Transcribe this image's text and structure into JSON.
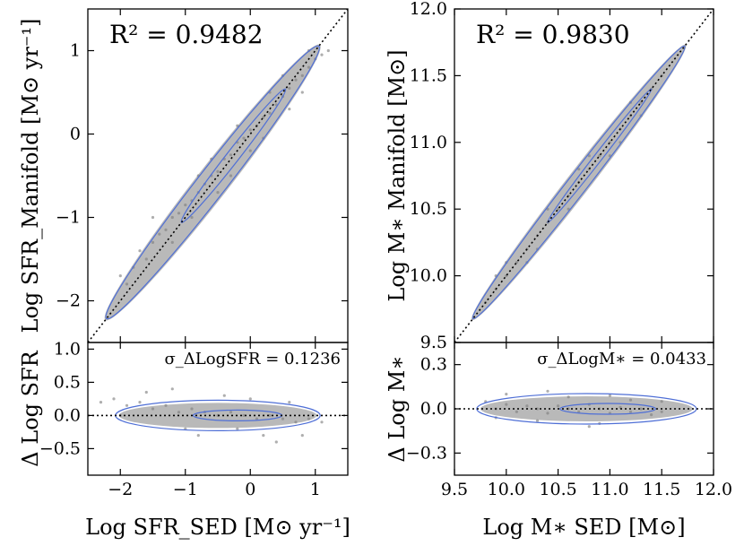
{
  "chart_data": [
    {
      "type": "scatter",
      "panel": "main",
      "annotation": "R² = 0.9482",
      "ylabel": "Log SFR_Manifold [M⊙ yr⁻¹]",
      "xlim": [
        -2.5,
        1.5
      ],
      "ylim": [
        -2.5,
        1.5
      ],
      "yticks": [
        -2,
        -1,
        0,
        1
      ],
      "ytick_labels": [
        "−2",
        "−1",
        "0",
        "1"
      ],
      "points": [
        [
          -1.8,
          -1.6
        ],
        [
          -1.7,
          -1.4
        ],
        [
          -1.6,
          -1.5
        ],
        [
          -1.5,
          -1.3
        ],
        [
          -1.4,
          -1.2
        ],
        [
          -1.3,
          -1.15
        ],
        [
          -1.2,
          -1.0
        ],
        [
          -1.1,
          -0.95
        ],
        [
          -1.0,
          -0.85
        ],
        [
          -0.9,
          -0.8
        ],
        [
          -0.8,
          -0.7
        ],
        [
          -0.7,
          -0.6
        ],
        [
          -0.6,
          -0.5
        ],
        [
          -0.5,
          -0.45
        ],
        [
          -0.4,
          -0.3
        ],
        [
          -0.3,
          -0.25
        ],
        [
          -0.2,
          -0.1
        ],
        [
          -0.1,
          -0.05
        ],
        [
          0.0,
          0.05
        ],
        [
          0.1,
          0.1
        ],
        [
          0.2,
          0.2
        ],
        [
          0.3,
          0.25
        ],
        [
          0.4,
          0.35
        ],
        [
          0.5,
          0.45
        ],
        [
          0.6,
          0.55
        ],
        [
          0.7,
          0.65
        ],
        [
          0.8,
          0.7
        ],
        [
          0.9,
          0.8
        ],
        [
          1.0,
          0.9
        ],
        [
          1.1,
          0.95
        ],
        [
          -1.9,
          -1.8
        ],
        [
          -2.0,
          -1.7
        ],
        [
          -1.5,
          -1.0
        ],
        [
          -1.2,
          -1.3
        ],
        [
          -0.9,
          -1.0
        ],
        [
          -0.6,
          -0.3
        ],
        [
          -0.3,
          -0.5
        ],
        [
          0.0,
          -0.2
        ],
        [
          0.3,
          0.5
        ],
        [
          0.6,
          0.3
        ],
        [
          0.9,
          1.0
        ],
        [
          1.2,
          1.0
        ],
        [
          -0.8,
          -0.5
        ],
        [
          -0.5,
          -0.7
        ],
        [
          -0.2,
          0.1
        ],
        [
          0.2,
          -0.05
        ],
        [
          0.5,
          0.7
        ],
        [
          0.8,
          0.5
        ]
      ],
      "contour_levels": 2
    },
    {
      "type": "scatter",
      "panel": "residual",
      "annotation": "σ_ΔLogSFR = 0.1236",
      "xlabel": "Log SFR_SED [M⊙ yr⁻¹]",
      "ylabel": "Δ Log SFR",
      "xlim": [
        -2.5,
        1.5
      ],
      "ylim": [
        -0.9,
        1.1
      ],
      "xticks": [
        -2,
        -1,
        0,
        1
      ],
      "xtick_labels": [
        "−2",
        "−1",
        "0",
        "1"
      ],
      "yticks": [
        -0.5,
        0.0,
        0.5,
        1.0
      ],
      "ytick_labels": [
        "−0.5",
        "0.0",
        "0.5",
        "1.0"
      ],
      "points": [
        [
          -2.3,
          0.2
        ],
        [
          -2.1,
          0.25
        ],
        [
          -1.9,
          0.15
        ],
        [
          -1.7,
          0.2
        ],
        [
          -1.5,
          0.1
        ],
        [
          -1.3,
          0.15
        ],
        [
          -1.1,
          0.05
        ],
        [
          -0.9,
          0.1
        ],
        [
          -0.7,
          0.05
        ],
        [
          -0.5,
          0.0
        ],
        [
          -0.3,
          0.05
        ],
        [
          -0.1,
          0.0
        ],
        [
          0.1,
          -0.05
        ],
        [
          0.3,
          0.0
        ],
        [
          0.5,
          -0.05
        ],
        [
          0.7,
          -0.1
        ],
        [
          0.9,
          -0.05
        ],
        [
          1.1,
          -0.1
        ],
        [
          -1.6,
          0.35
        ],
        [
          -1.0,
          -0.2
        ],
        [
          -0.4,
          0.3
        ],
        [
          0.2,
          -0.3
        ],
        [
          0.6,
          0.2
        ],
        [
          -2.0,
          0.0
        ],
        [
          -0.8,
          -0.3
        ],
        [
          0.0,
          0.25
        ],
        [
          0.8,
          -0.3
        ],
        [
          -1.2,
          0.4
        ],
        [
          0.4,
          -0.4
        ],
        [
          -0.2,
          -0.2
        ]
      ],
      "reference_line": 0
    },
    {
      "type": "scatter",
      "panel": "main",
      "annotation": "R² = 0.9830",
      "ylabel": "Log M∗ Manifold [M⊙]",
      "xlim": [
        9.5,
        12.0
      ],
      "ylim": [
        9.5,
        12.0
      ],
      "yticks": [
        9.5,
        10.0,
        10.5,
        11.0,
        11.5,
        12.0
      ],
      "ytick_labels": [
        "9.5",
        "10.0",
        "10.5",
        "11.0",
        "11.5",
        "12.0"
      ],
      "points": [
        [
          9.8,
          9.8
        ],
        [
          9.9,
          9.9
        ],
        [
          10.0,
          10.0
        ],
        [
          10.1,
          10.1
        ],
        [
          10.2,
          10.2
        ],
        [
          10.3,
          10.3
        ],
        [
          10.4,
          10.4
        ],
        [
          10.5,
          10.5
        ],
        [
          10.6,
          10.6
        ],
        [
          10.7,
          10.7
        ],
        [
          10.8,
          10.8
        ],
        [
          10.9,
          10.9
        ],
        [
          11.0,
          11.0
        ],
        [
          11.1,
          11.1
        ],
        [
          11.2,
          11.2
        ],
        [
          11.3,
          11.3
        ],
        [
          11.4,
          11.4
        ],
        [
          11.5,
          11.5
        ],
        [
          10.0,
          10.1
        ],
        [
          10.2,
          10.1
        ],
        [
          10.4,
          10.5
        ],
        [
          10.6,
          10.5
        ],
        [
          10.8,
          10.9
        ],
        [
          11.0,
          10.9
        ],
        [
          11.2,
          11.3
        ],
        [
          10.3,
          10.2
        ],
        [
          10.7,
          10.8
        ],
        [
          11.1,
          11.0
        ],
        [
          9.9,
          10.0
        ],
        [
          11.3,
          11.2
        ]
      ],
      "contour_levels": 2
    },
    {
      "type": "scatter",
      "panel": "residual",
      "annotation": "σ_ΔLogM∗ = 0.0433",
      "xlabel": "Log M∗ SED [M⊙]",
      "ylabel": "Δ Log M∗",
      "xlim": [
        9.5,
        12.0
      ],
      "ylim": [
        -0.45,
        0.45
      ],
      "xticks": [
        9.5,
        10.0,
        10.5,
        11.0,
        11.5,
        12.0
      ],
      "xtick_labels": [
        "9.5",
        "10.0",
        "10.5",
        "11.0",
        "11.5",
        "12.0"
      ],
      "yticks": [
        -0.3,
        0.0,
        0.3
      ],
      "ytick_labels": [
        "−0.3",
        "0.0",
        "0.3"
      ],
      "points": [
        [
          9.8,
          0.05
        ],
        [
          9.9,
          0.0
        ],
        [
          10.0,
          0.03
        ],
        [
          10.1,
          -0.02
        ],
        [
          10.2,
          0.02
        ],
        [
          10.3,
          0.0
        ],
        [
          10.4,
          -0.03
        ],
        [
          10.5,
          0.02
        ],
        [
          10.6,
          0.0
        ],
        [
          10.7,
          -0.02
        ],
        [
          10.8,
          0.03
        ],
        [
          10.9,
          0.0
        ],
        [
          11.0,
          -0.03
        ],
        [
          11.1,
          0.01
        ],
        [
          11.2,
          -0.02
        ],
        [
          11.3,
          0.0
        ],
        [
          11.4,
          -0.04
        ],
        [
          11.5,
          -0.02
        ],
        [
          10.0,
          0.1
        ],
        [
          10.3,
          -0.08
        ],
        [
          10.6,
          0.08
        ],
        [
          10.9,
          -0.1
        ],
        [
          11.2,
          0.06
        ],
        [
          10.4,
          0.12
        ],
        [
          10.8,
          -0.12
        ],
        [
          11.5,
          0.05
        ],
        [
          9.9,
          -0.06
        ],
        [
          11.0,
          0.09
        ]
      ],
      "reference_line": 0
    }
  ]
}
